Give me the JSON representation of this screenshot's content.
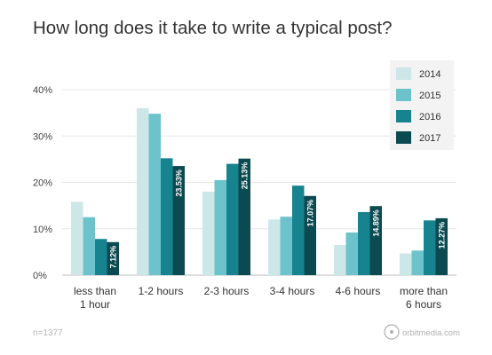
{
  "chart_data": {
    "type": "bar",
    "title": "How long does it take to write a typical post?",
    "categories": [
      "less than\n1 hour",
      "1-2 hours",
      "2-3 hours",
      "3-4 hours",
      "4-6 hours",
      "more than\n6 hours"
    ],
    "series": [
      {
        "name": "2014",
        "color": "#cde7e8",
        "values": [
          15.8,
          36.0,
          18.0,
          12.0,
          6.5,
          4.7
        ]
      },
      {
        "name": "2015",
        "color": "#6cc3cc",
        "values": [
          12.5,
          34.8,
          20.5,
          12.6,
          9.2,
          5.3
        ]
      },
      {
        "name": "2016",
        "color": "#17838f",
        "values": [
          7.8,
          25.2,
          24.0,
          19.3,
          13.6,
          11.8
        ]
      },
      {
        "name": "2017",
        "color": "#0b4a50",
        "values": [
          7.12,
          23.53,
          25.13,
          17.07,
          14.89,
          12.27
        ]
      }
    ],
    "data_labels": {
      "series": "2017",
      "texts": [
        "7.12%",
        "23.53%",
        "25.13%",
        "17.07%",
        "14.89%",
        "12.27%"
      ]
    },
    "y_ticks": [
      "0%",
      "10%",
      "20%",
      "30%",
      "40%"
    ],
    "ylim": [
      0,
      40
    ],
    "xlabel": "",
    "ylabel": "",
    "grid": true,
    "legend_position": "top-right"
  },
  "footer": {
    "note": "n=1377",
    "brand": "orbitmedia.com"
  }
}
